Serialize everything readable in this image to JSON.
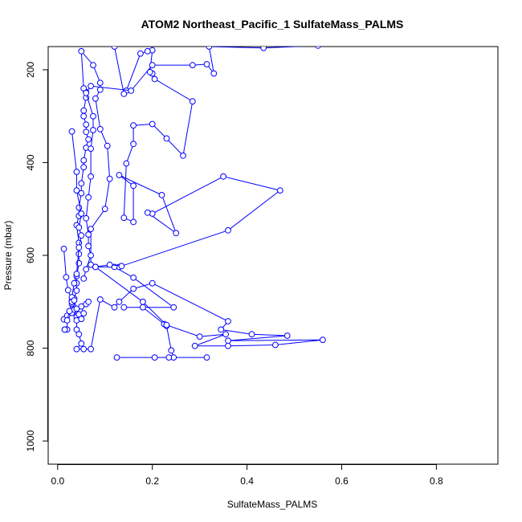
{
  "chart_data": {
    "type": "line",
    "title": "ATOM2 Northeast_Pacific_1 SulfateMass_PALMS",
    "xlabel": "SulfateMass_PALMS",
    "ylabel": "Pressure (mbar)",
    "xlim": [
      -0.02,
      0.93
    ],
    "ylim": [
      1050,
      150
    ],
    "y_axis_reversed": true,
    "xticks": [
      0.0,
      0.2,
      0.4,
      0.6,
      0.8
    ],
    "xtick_labels": [
      "0.0",
      "0.2",
      "0.4",
      "0.6",
      "0.8"
    ],
    "yticks": [
      200,
      400,
      600,
      800,
      1000
    ],
    "ytick_labels": [
      "200",
      "400",
      "600",
      "800",
      "1000"
    ],
    "grid": false,
    "series": [
      {
        "color": "#0000ff",
        "marker": "open-circle",
        "points": [
          [
            0.013,
            738
          ],
          [
            0.02,
            730
          ],
          [
            0.03,
            724
          ],
          [
            0.03,
            705
          ],
          [
            0.03,
            699
          ],
          [
            0.035,
            693
          ],
          [
            0.04,
            676
          ],
          [
            0.04,
            660
          ],
          [
            0.04,
            645
          ],
          [
            0.045,
            617
          ],
          [
            0.045,
            597
          ],
          [
            0.045,
            573
          ],
          [
            0.04,
            535
          ],
          [
            0.045,
            515
          ],
          [
            0.045,
            497
          ],
          [
            0.05,
            466
          ],
          [
            0.05,
            445
          ],
          [
            0.055,
            410
          ],
          [
            0.055,
            395
          ],
          [
            0.06,
            368
          ],
          [
            0.065,
            350
          ],
          [
            0.06,
            334
          ],
          [
            0.06,
            318
          ],
          [
            0.055,
            300
          ],
          [
            0.055,
            288
          ],
          [
            0.06,
            260
          ],
          [
            0.06,
            248
          ],
          [
            0.055,
            240
          ],
          [
            0.05,
            160
          ],
          [
            0.075,
            190
          ],
          [
            0.09,
            228
          ],
          [
            0.09,
            243
          ],
          [
            0.08,
            262
          ],
          [
            0.09,
            328
          ],
          [
            0.105,
            364
          ],
          [
            0.11,
            435
          ],
          [
            0.1,
            500
          ],
          [
            0.07,
            543
          ],
          [
            0.07,
            620
          ],
          [
            0.08,
            625
          ],
          [
            0.13,
            625
          ],
          [
            0.12,
            625
          ],
          [
            0.16,
            648
          ],
          [
            0.245,
            712
          ],
          [
            0.14,
            712
          ],
          [
            0.18,
            712
          ],
          [
            0.225,
            748
          ],
          [
            0.23,
            752
          ],
          [
            0.24,
            805
          ],
          [
            0.245,
            820
          ],
          [
            0.315,
            820
          ],
          [
            0.235,
            820
          ],
          [
            0.205,
            820
          ],
          [
            0.125,
            820
          ]
        ]
      },
      {
        "color": "#0000ff",
        "marker": "open-circle",
        "points": [
          [
            0.013,
            586
          ],
          [
            0.018,
            647
          ],
          [
            0.022,
            675
          ],
          [
            0.03,
            698
          ],
          [
            0.035,
            717
          ],
          [
            0.04,
            733
          ],
          [
            0.04,
            760
          ],
          [
            0.045,
            770
          ],
          [
            0.05,
            790
          ],
          [
            0.04,
            802
          ],
          [
            0.055,
            802
          ],
          [
            0.07,
            802
          ],
          [
            0.09,
            695
          ],
          [
            0.12,
            712
          ],
          [
            0.13,
            700
          ],
          [
            0.16,
            672
          ],
          [
            0.2,
            660
          ],
          [
            0.36,
            742
          ],
          [
            0.345,
            760
          ],
          [
            0.41,
            770
          ],
          [
            0.485,
            773
          ],
          [
            0.36,
            784
          ],
          [
            0.56,
            782
          ],
          [
            0.46,
            793
          ],
          [
            0.36,
            795
          ],
          [
            0.29,
            795
          ],
          [
            0.355,
            770
          ],
          [
            0.3,
            775
          ],
          [
            0.23,
            750
          ],
          [
            0.18,
            700
          ],
          [
            0.08,
            625
          ],
          [
            0.11,
            620
          ],
          [
            0.135,
            623
          ],
          [
            0.36,
            546
          ],
          [
            0.47,
            460
          ],
          [
            0.35,
            430
          ],
          [
            0.2,
            510
          ],
          [
            0.19,
            508
          ],
          [
            0.25,
            552
          ],
          [
            0.22,
            470
          ],
          [
            0.13,
            427
          ],
          [
            0.16,
            450
          ],
          [
            0.16,
            528
          ],
          [
            0.14,
            519
          ],
          [
            0.145,
            402
          ],
          [
            0.16,
            360
          ],
          [
            0.16,
            320
          ],
          [
            0.2,
            317
          ],
          [
            0.23,
            348
          ],
          [
            0.265,
            385
          ],
          [
            0.285,
            268
          ],
          [
            0.205,
            220
          ],
          [
            0.2,
            208
          ],
          [
            0.195,
            205
          ],
          [
            0.2,
            158
          ],
          [
            0.19,
            160
          ],
          [
            0.175,
            165
          ],
          [
            0.145,
            245
          ],
          [
            0.14,
            252
          ],
          [
            0.12,
            150
          ]
        ]
      },
      {
        "color": "#0000ff",
        "marker": "open-circle",
        "points": [
          [
            0.03,
            333
          ],
          [
            0.04,
            420
          ],
          [
            0.04,
            460
          ],
          [
            0.05,
            510
          ],
          [
            0.045,
            540
          ],
          [
            0.05,
            557
          ],
          [
            0.045,
            583
          ],
          [
            0.04,
            640
          ],
          [
            0.035,
            660
          ],
          [
            0.03,
            690
          ],
          [
            0.03,
            700
          ],
          [
            0.025,
            720
          ],
          [
            0.02,
            740
          ],
          [
            0.02,
            760
          ],
          [
            0.015,
            760
          ],
          [
            0.015,
            760
          ]
        ]
      },
      {
        "color": "#0000ff",
        "marker": "open-circle",
        "points": [
          [
            0.055,
            650
          ],
          [
            0.06,
            630
          ],
          [
            0.07,
            600
          ],
          [
            0.065,
            580
          ],
          [
            0.065,
            555
          ],
          [
            0.06,
            520
          ],
          [
            0.065,
            475
          ],
          [
            0.07,
            430
          ],
          [
            0.07,
            370
          ],
          [
            0.075,
            330
          ],
          [
            0.075,
            300
          ],
          [
            0.06,
            250
          ],
          [
            0.07,
            235
          ],
          [
            0.155,
            245
          ],
          [
            0.2,
            190
          ],
          [
            0.285,
            190
          ],
          [
            0.315,
            188
          ],
          [
            0.33,
            208
          ],
          [
            0.32,
            150
          ],
          [
            0.435,
            153
          ],
          [
            0.55,
            148
          ]
        ]
      },
      {
        "color": "#0000ff",
        "marker": "open-circle",
        "points": [
          [
            0.035,
            697
          ],
          [
            0.04,
            715
          ],
          [
            0.045,
            727
          ],
          [
            0.04,
            740
          ],
          [
            0.05,
            737
          ],
          [
            0.055,
            725
          ],
          [
            0.05,
            710
          ],
          [
            0.06,
            705
          ],
          [
            0.065,
            700
          ]
        ]
      }
    ]
  }
}
